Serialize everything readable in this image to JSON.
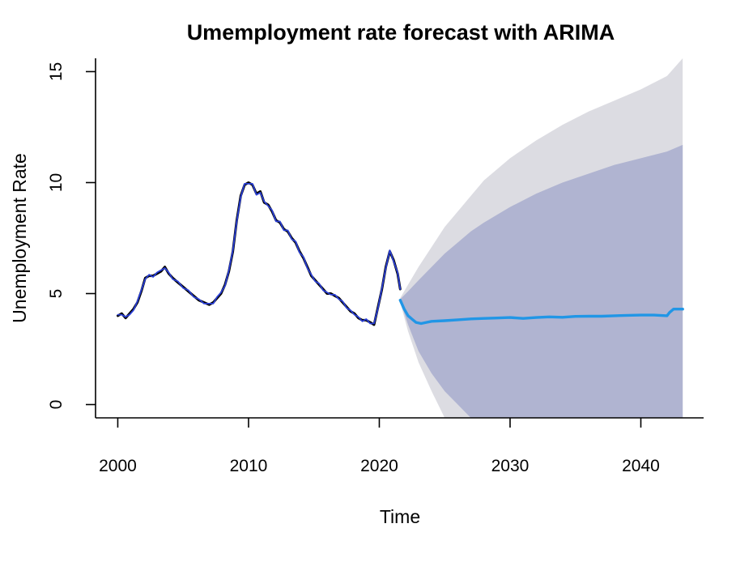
{
  "chart_data": {
    "type": "line",
    "title": "Umemployment rate forecast with ARIMA",
    "xlabel": "Time",
    "ylabel": "Unemployment Rate",
    "xlim": [
      1998.3,
      2044.8
    ],
    "ylim": [
      -0.6,
      15.6
    ],
    "x_ticks": [
      2000,
      2010,
      2020,
      2030,
      2040
    ],
    "y_ticks": [
      0,
      5,
      10,
      15
    ],
    "grid": false,
    "legend": "none",
    "colors": {
      "actual": "#000000",
      "fitted": "#2a3fd6",
      "forecast": "#2196e6",
      "band80": "#b0b4d1",
      "band95": "#dcdce2"
    },
    "series": [
      {
        "role": "actual",
        "x": [
          2000.0,
          2000.3,
          2000.6,
          2000.9,
          2001.2,
          2001.5,
          2001.8,
          2002.1,
          2002.4,
          2002.7,
          2003.0,
          2003.3,
          2003.6,
          2003.9,
          2004.2,
          2004.6,
          2005.0,
          2005.4,
          2005.8,
          2006.2,
          2006.6,
          2007.0,
          2007.3,
          2007.6,
          2007.9,
          2008.2,
          2008.5,
          2008.8,
          2009.1,
          2009.4,
          2009.7,
          2010.0,
          2010.3,
          2010.6,
          2010.9,
          2011.2,
          2011.5,
          2011.8,
          2012.1,
          2012.4,
          2012.7,
          2013.0,
          2013.3,
          2013.6,
          2013.9,
          2014.2,
          2014.5,
          2014.8,
          2015.1,
          2015.4,
          2015.7,
          2016.0,
          2016.3,
          2016.6,
          2016.9,
          2017.2,
          2017.5,
          2017.8,
          2018.1,
          2018.4,
          2018.7,
          2019.0,
          2019.3,
          2019.6,
          2019.9,
          2020.2,
          2020.5,
          2020.8,
          2021.1,
          2021.4,
          2021.6
        ],
        "values": [
          4.0,
          4.1,
          3.9,
          4.1,
          4.3,
          4.6,
          5.1,
          5.7,
          5.8,
          5.8,
          5.9,
          6.0,
          6.2,
          5.9,
          5.7,
          5.5,
          5.3,
          5.1,
          4.9,
          4.7,
          4.6,
          4.5,
          4.6,
          4.8,
          5.0,
          5.4,
          6.0,
          6.9,
          8.3,
          9.4,
          9.9,
          10.0,
          9.9,
          9.5,
          9.6,
          9.1,
          9.0,
          8.7,
          8.3,
          8.2,
          7.9,
          7.8,
          7.5,
          7.3,
          6.9,
          6.6,
          6.2,
          5.8,
          5.6,
          5.4,
          5.2,
          5.0,
          5.0,
          4.9,
          4.8,
          4.6,
          4.4,
          4.2,
          4.1,
          3.9,
          3.8,
          3.8,
          3.7,
          3.6,
          4.4,
          5.2,
          6.2,
          6.9,
          6.5,
          5.9,
          5.2
        ]
      },
      {
        "role": "fitted",
        "x": [
          2000.0,
          2000.3,
          2000.6,
          2000.9,
          2001.2,
          2001.5,
          2001.8,
          2002.1,
          2002.4,
          2002.7,
          2003.0,
          2003.3,
          2003.6,
          2003.9,
          2004.2,
          2004.6,
          2005.0,
          2005.4,
          2005.8,
          2006.2,
          2006.6,
          2007.0,
          2007.3,
          2007.6,
          2007.9,
          2008.2,
          2008.5,
          2008.8,
          2009.1,
          2009.4,
          2009.7,
          2010.0,
          2010.3,
          2010.6,
          2010.9,
          2011.2,
          2011.5,
          2011.8,
          2012.1,
          2012.4,
          2012.7,
          2013.0,
          2013.3,
          2013.6,
          2013.9,
          2014.2,
          2014.5,
          2014.8,
          2015.1,
          2015.4,
          2015.7,
          2016.0,
          2016.3,
          2016.6,
          2016.9,
          2017.2,
          2017.5,
          2017.8,
          2018.1,
          2018.4,
          2018.7,
          2019.0,
          2019.3,
          2019.6,
          2019.9,
          2020.2,
          2020.5,
          2020.8,
          2021.1,
          2021.4,
          2021.6
        ],
        "values": [
          4.05,
          4.05,
          3.95,
          4.05,
          4.25,
          4.65,
          5.15,
          5.65,
          5.85,
          5.75,
          5.95,
          6.05,
          6.15,
          5.95,
          5.65,
          5.55,
          5.25,
          5.15,
          4.85,
          4.75,
          4.55,
          4.55,
          4.55,
          4.85,
          5.05,
          5.35,
          6.05,
          6.95,
          8.25,
          9.35,
          9.95,
          9.95,
          9.95,
          9.45,
          9.55,
          9.15,
          8.95,
          8.75,
          8.25,
          8.25,
          7.85,
          7.85,
          7.45,
          7.35,
          6.85,
          6.65,
          6.15,
          5.85,
          5.55,
          5.45,
          5.15,
          5.05,
          4.95,
          4.95,
          4.75,
          4.65,
          4.35,
          4.25,
          4.05,
          3.95,
          3.75,
          3.85,
          3.65,
          3.65,
          4.35,
          5.25,
          6.15,
          6.95,
          6.45,
          5.95,
          5.2
        ]
      },
      {
        "role": "forecast",
        "x": [
          2021.6,
          2021.9,
          2022.2,
          2022.5,
          2022.8,
          2023.2,
          2023.6,
          2024.0,
          2025.0,
          2026.0,
          2027.0,
          2028.0,
          2029.0,
          2030.0,
          2031.0,
          2032.0,
          2033.0,
          2034.0,
          2035.0,
          2036.0,
          2037.0,
          2038.0,
          2039.0,
          2040.0,
          2041.0,
          2042.0,
          2042.2,
          2042.5,
          2043.2
        ],
        "values": [
          4.7,
          4.3,
          4.0,
          3.85,
          3.7,
          3.65,
          3.7,
          3.75,
          3.78,
          3.82,
          3.86,
          3.88,
          3.9,
          3.92,
          3.88,
          3.92,
          3.95,
          3.93,
          3.97,
          3.98,
          3.98,
          4.0,
          4.02,
          4.03,
          4.03,
          4.0,
          4.15,
          4.3,
          4.3
        ]
      }
    ],
    "intervals": {
      "x": [
        2021.6,
        2022.2,
        2023.0,
        2024.0,
        2025.0,
        2026.0,
        2027.0,
        2028.0,
        2030.0,
        2032.0,
        2034.0,
        2036.0,
        2038.0,
        2040.0,
        2042.0,
        2043.2
      ],
      "upper95": [
        4.8,
        5.4,
        6.2,
        7.1,
        8.0,
        8.7,
        9.4,
        10.1,
        11.1,
        11.9,
        12.6,
        13.2,
        13.7,
        14.2,
        14.8,
        15.6
      ],
      "lower95": [
        4.6,
        3.3,
        1.9,
        0.6,
        -0.6,
        -0.6,
        -0.6,
        -0.6,
        -0.6,
        -0.6,
        -0.6,
        -0.6,
        -0.6,
        -0.6,
        -0.6,
        -0.6
      ],
      "upper80": [
        4.75,
        5.1,
        5.6,
        6.2,
        6.8,
        7.3,
        7.8,
        8.2,
        8.9,
        9.5,
        10.0,
        10.4,
        10.8,
        11.1,
        11.4,
        11.7
      ],
      "lower80": [
        4.65,
        3.6,
        2.4,
        1.4,
        0.6,
        0.0,
        -0.6,
        -0.6,
        -0.6,
        -0.6,
        -0.6,
        -0.6,
        -0.6,
        -0.6,
        -0.6,
        -0.6
      ]
    }
  }
}
